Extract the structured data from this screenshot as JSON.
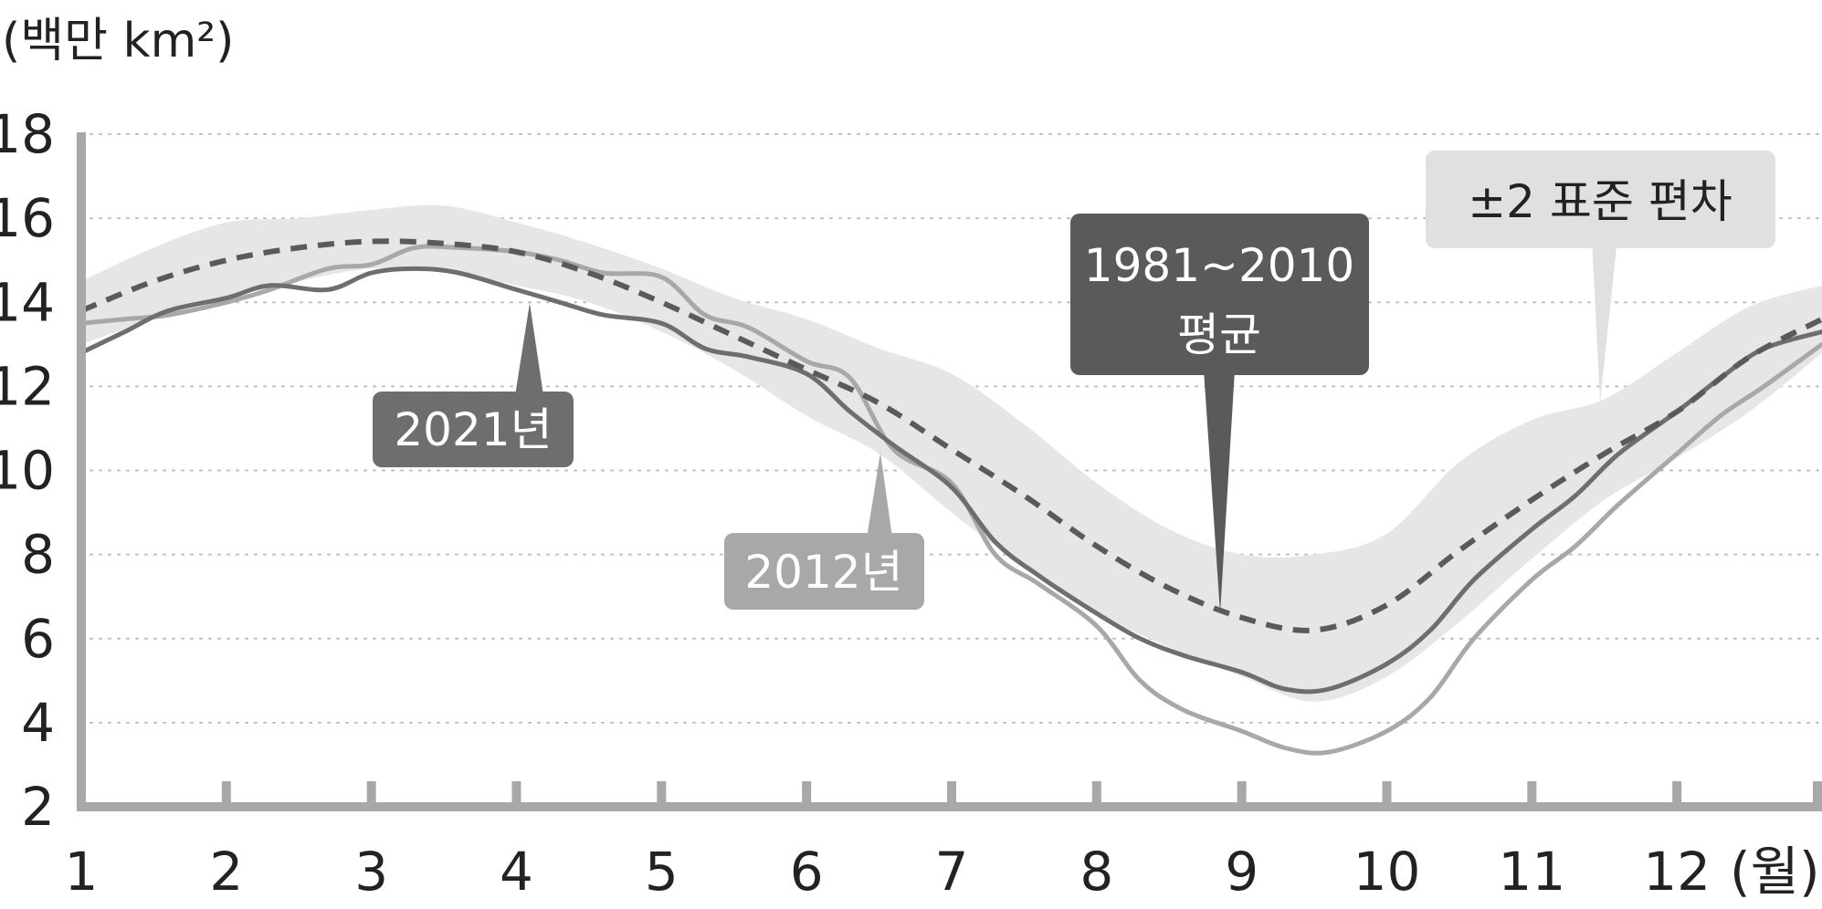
{
  "chart_data": {
    "type": "line",
    "ylabel": "(백만 km²)",
    "xlabel": "(월)",
    "ylim": [
      2,
      18
    ],
    "xlim": [
      1,
      13
    ],
    "yticks": [
      "2",
      "4",
      "6",
      "8",
      "10",
      "12",
      "14",
      "16",
      "18"
    ],
    "xticks": [
      "1",
      "2",
      "3",
      "4",
      "5",
      "6",
      "7",
      "8",
      "9",
      "10",
      "11",
      "12"
    ],
    "grid": true,
    "series": [
      {
        "name": "1981~2010 평균",
        "style": "dashed",
        "color": "#5a5a5a",
        "x": [
          1,
          1.5,
          2,
          2.5,
          3,
          3.5,
          4,
          4.5,
          5,
          5.5,
          6,
          6.5,
          7,
          7.5,
          8,
          8.5,
          9,
          9.5,
          10,
          10.5,
          11,
          11.5,
          12,
          12.5,
          13
        ],
        "y": [
          13.8,
          14.5,
          15.0,
          15.3,
          15.45,
          15.4,
          15.2,
          14.7,
          14.0,
          13.2,
          12.4,
          11.6,
          10.5,
          9.4,
          8.2,
          7.2,
          6.5,
          6.2,
          6.8,
          8.1,
          9.3,
          10.4,
          11.4,
          12.7,
          13.6
        ]
      },
      {
        "name": "2021년",
        "style": "solid",
        "color": "#6e6e6e",
        "x": [
          1,
          1.3,
          1.6,
          2,
          2.3,
          2.7,
          3,
          3.3,
          3.6,
          4,
          4.3,
          4.6,
          5,
          5.3,
          5.6,
          6,
          6.3,
          6.6,
          7,
          7.3,
          7.6,
          8,
          8.3,
          8.6,
          9,
          9.3,
          9.6,
          10,
          10.3,
          10.6,
          11,
          11.3,
          11.6,
          12,
          12.3,
          12.6,
          13
        ],
        "y": [
          12.8,
          13.3,
          13.8,
          14.1,
          14.4,
          14.3,
          14.7,
          14.8,
          14.7,
          14.3,
          14.0,
          13.7,
          13.5,
          12.9,
          12.7,
          12.3,
          11.4,
          10.6,
          9.6,
          8.3,
          7.5,
          6.6,
          6.0,
          5.6,
          5.2,
          4.8,
          4.8,
          5.4,
          6.2,
          7.4,
          8.6,
          9.4,
          10.4,
          11.4,
          12.2,
          12.9,
          13.3
        ]
      },
      {
        "name": "2012년",
        "style": "solid",
        "color": "#a8a8a8",
        "x": [
          1,
          1.3,
          1.6,
          2,
          2.3,
          2.7,
          3,
          3.3,
          3.6,
          4,
          4.3,
          4.6,
          5,
          5.3,
          5.6,
          6,
          6.3,
          6.6,
          7,
          7.3,
          7.6,
          8,
          8.3,
          8.6,
          9,
          9.3,
          9.6,
          10,
          10.3,
          10.6,
          11,
          11.3,
          11.6,
          12,
          12.3,
          12.6,
          13
        ],
        "y": [
          13.5,
          13.6,
          13.7,
          14.0,
          14.3,
          14.8,
          14.9,
          15.3,
          15.3,
          15.2,
          15.0,
          14.7,
          14.6,
          13.7,
          13.4,
          12.6,
          12.2,
          10.5,
          9.7,
          8.0,
          7.3,
          6.3,
          5.0,
          4.3,
          3.8,
          3.4,
          3.3,
          3.8,
          4.6,
          6.0,
          7.4,
          8.2,
          9.2,
          10.4,
          11.3,
          12.0,
          13.0
        ]
      }
    ],
    "band": {
      "name": "±2 표준 편차",
      "color": "#e6e6e6",
      "x": [
        1,
        1.5,
        2,
        2.5,
        3,
        3.5,
        4,
        4.5,
        5,
        5.5,
        6,
        6.5,
        7,
        7.5,
        8,
        8.5,
        9,
        9.5,
        10,
        10.5,
        11,
        11.5,
        12,
        12.5,
        13
      ],
      "upper": [
        14.5,
        15.3,
        15.9,
        16.0,
        16.2,
        16.3,
        15.9,
        15.4,
        14.8,
        14.1,
        13.6,
        12.9,
        12.3,
        11.1,
        9.7,
        8.6,
        8.0,
        8.0,
        8.5,
        10.2,
        11.2,
        11.7,
        12.8,
        13.9,
        14.4
      ],
      "lower": [
        13.0,
        13.6,
        14.1,
        14.5,
        14.8,
        14.7,
        14.4,
        14.0,
        13.3,
        12.4,
        11.3,
        10.4,
        9.0,
        7.7,
        6.6,
        5.8,
        5.1,
        4.5,
        5.1,
        6.4,
        7.9,
        9.3,
        10.3,
        11.4,
        12.8
      ]
    },
    "annotations": [
      {
        "label": "2021년",
        "series": "2021년"
      },
      {
        "label": "2012년",
        "series": "2012년"
      },
      {
        "label_line1": "1981~2010",
        "label_line2": "평균",
        "series": "1981~2010 평균"
      },
      {
        "label": "±2 표준 편차",
        "series": "±2 표준 편차"
      }
    ]
  }
}
